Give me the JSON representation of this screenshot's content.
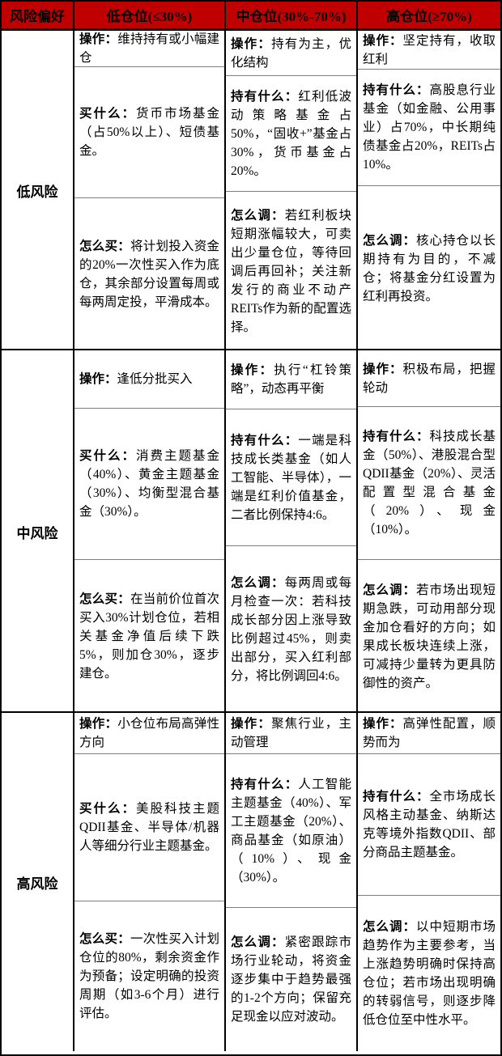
{
  "colors": {
    "header_bg": "#c00000",
    "border": "#000000",
    "sub_divider": "#7f7f7f"
  },
  "header": {
    "columns": [
      "风险偏好",
      "低仓位(≤30%)",
      "中仓位(30%-70%)",
      "高仓位(≥70%)"
    ]
  },
  "groups": [
    {
      "label": "低风险",
      "cells": [
        {
          "sections": [
            {
              "label": "操作：",
              "text": "维持持有或小幅建仓"
            },
            {
              "label": "买什么：",
              "text": "货币市场基金（占50%以上）、短债基金。"
            },
            {
              "label": "怎么买：",
              "text": "将计划投入资金的20%一次性买入作为底仓，其余部分设置每周或每两周定投，平滑成本。"
            }
          ]
        },
        {
          "sections": [
            {
              "label": "操作：",
              "text": "持有为主，优化结构"
            },
            {
              "label": "持有什么：",
              "text": "红利低波动策略基金占50%，“固收+”基金占30%，货币基金占20%。"
            },
            {
              "label": "怎么调：",
              "text": "若红利板块短期涨幅较大，可卖出少量仓位，等待回调后再回补；关注新发行的商业不动产REITs作为新的配置选择。"
            }
          ]
        },
        {
          "sections": [
            {
              "label": "操作：",
              "text": "坚定持有，收取红利"
            },
            {
              "label": "持有什么：",
              "text": "高股息行业基金（如金融、公用事业）占70%，中长期纯债基金占20%，REITs占10%。"
            },
            {
              "label": "怎么调：",
              "text": "核心持仓以长期持有为目的，不减仓；将基金分红设置为红利再投资。"
            }
          ]
        }
      ]
    },
    {
      "label": "中风险",
      "cells": [
        {
          "sections": [
            {
              "label": "操作：",
              "text": "逢低分批买入"
            },
            {
              "label": "买什么：",
              "text": "消费主题基金（40%）、黄金主题基金（30%）、均衡型混合基金（30%）。"
            },
            {
              "label": "怎么买：",
              "text": "在当前价位首次买入30%计划仓位，若相关基金净值后续下跌5%，则加仓30%，逐步建仓。"
            }
          ]
        },
        {
          "sections": [
            {
              "label": "操作：",
              "text": "执行“杠铃策略”，动态再平衡"
            },
            {
              "label": "持有什么：",
              "text": "一端是科技成长类基金（如人工智能、半导体），一端是红利价值基金，二者比例保持4:6。"
            },
            {
              "label": "怎么调：",
              "text": "每两周或每月检查一次：若科技成长部分因上涨导致比例超过45%，则卖出部分，买入红利部分，将比例调回4:6。"
            }
          ]
        },
        {
          "sections": [
            {
              "label": "操作：",
              "text": "积极布局，把握轮动"
            },
            {
              "label": "持有什么：",
              "text": "科技成长基金（50%）、港股混合型QDII基金（20%）、灵活配置型混合基金（20%）、现金（10%）。"
            },
            {
              "label": "怎么调：",
              "text": "若市场出现短期急跌，可动用部分现金加仓看好的方向；如果成长板块连续上涨，可减持少量转为更具防御性的资产。"
            }
          ]
        }
      ]
    },
    {
      "label": "高风险",
      "cells": [
        {
          "sections": [
            {
              "label": "操作：",
              "text": "小仓位布局高弹性方向"
            },
            {
              "label": "买什么：",
              "text": "美股科技主题QDII基金、半导体/机器人等细分行业主题基金。"
            },
            {
              "label": "怎么买：",
              "text": "一次性买入计划仓位的80%，剩余资金作为预备；设定明确的投资周期（如3-6个月）进行评估。"
            }
          ]
        },
        {
          "sections": [
            {
              "label": "操作：",
              "text": "聚焦行业，主动管理"
            },
            {
              "label": "持有什么：",
              "text": "人工智能主题基金（40%）、军工主题基金（20%）、商品基金（如原油）（10%）、现金（30%）。"
            },
            {
              "label": "怎么调：",
              "text": "紧密跟踪市场行业轮动，将资金逐步集中于趋势最强的1-2个方向；保留充足现金以应对波动。"
            }
          ]
        },
        {
          "sections": [
            {
              "label": "操作：",
              "text": "高弹性配置，顺势而为"
            },
            {
              "label": "持有什么：",
              "text": "全市场成长风格主动基金、纳斯达克等境外指数QDII、部分商品主题基金。"
            },
            {
              "label": "怎么调：",
              "text": "以中短期市场趋势作为主要参考，当上涨趋势明确时保持高仓位；若市场出现明确的转弱信号，则逐步降低仓位至中性水平。"
            }
          ]
        }
      ]
    }
  ]
}
